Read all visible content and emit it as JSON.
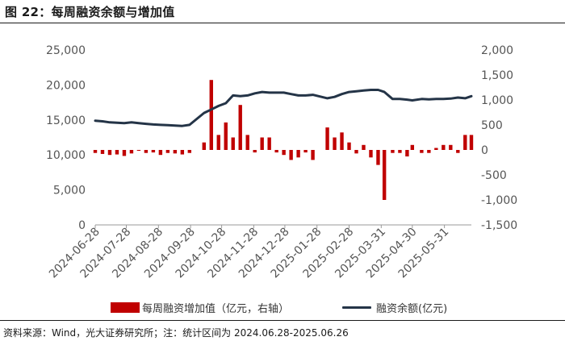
{
  "title": "图 22：每周融资余额与增加值",
  "source": "资料来源：Wind，光大证券研究所；注：统计区间为 2024.06.28-2025.06.26",
  "chart_data": {
    "type": "bar+line",
    "x": [
      "2024-06-28",
      "2024-07-05",
      "2024-07-12",
      "2024-07-19",
      "2024-07-26",
      "2024-08-02",
      "2024-08-09",
      "2024-08-16",
      "2024-08-23",
      "2024-08-30",
      "2024-09-06",
      "2024-09-13",
      "2024-09-20",
      "2024-09-27",
      "2024-10-11",
      "2024-10-18",
      "2024-10-25",
      "2024-11-01",
      "2024-11-08",
      "2024-11-15",
      "2024-11-22",
      "2024-11-29",
      "2024-12-06",
      "2024-12-13",
      "2024-12-20",
      "2024-12-27",
      "2025-01-03",
      "2025-01-10",
      "2025-01-17",
      "2025-01-24",
      "2025-02-07",
      "2025-02-14",
      "2025-02-21",
      "2025-02-28",
      "2025-03-07",
      "2025-03-14",
      "2025-03-21",
      "2025-03-28",
      "2025-04-03",
      "2025-04-11",
      "2025-04-18",
      "2025-04-25",
      "2025-04-30",
      "2025-05-09",
      "2025-05-16",
      "2025-05-23",
      "2025-05-30",
      "2025-06-06",
      "2025-06-13",
      "2025-06-20",
      "2025-06-26"
    ],
    "xtick_labels": [
      "2024-06-28",
      "2024-07-28",
      "2024-08-28",
      "2024-09-28",
      "2024-10-28",
      "2024-11-28",
      "2024-12-28",
      "2025-01-28",
      "2025-02-28",
      "2025-03-31",
      "2025-04-30",
      "2025-05-31"
    ],
    "xtick_dates": [
      "2024-06-28",
      "2024-07-28",
      "2024-08-28",
      "2024-09-28",
      "2024-10-28",
      "2024-11-28",
      "2024-12-28",
      "2025-01-28",
      "2025-02-28",
      "2025-03-31",
      "2025-04-30",
      "2025-05-31"
    ],
    "series": [
      {
        "name": "每周融资增加值（亿元，右轴）",
        "kind": "bar",
        "axis": "right",
        "color": "#c00000",
        "values": [
          -60,
          -80,
          -100,
          -90,
          -120,
          -70,
          0,
          -60,
          -50,
          -100,
          -60,
          -70,
          -90,
          -60,
          150,
          1400,
          300,
          550,
          250,
          900,
          300,
          -50,
          250,
          250,
          -50,
          -100,
          -200,
          -150,
          -50,
          -200,
          450,
          250,
          350,
          150,
          -70,
          100,
          -150,
          -300,
          -1000,
          -60,
          -60,
          -130,
          100,
          -60,
          -60,
          40,
          100,
          100,
          -60,
          300,
          300
        ]
      },
      {
        "name": "融资余额(亿元)",
        "kind": "line",
        "axis": "left",
        "color": "#243447",
        "values": [
          14900,
          14800,
          14650,
          14600,
          14550,
          14650,
          14550,
          14450,
          14350,
          14300,
          14250,
          14200,
          14150,
          14300,
          16000,
          16500,
          17000,
          17400,
          18500,
          18400,
          18500,
          18800,
          19000,
          18900,
          18900,
          18900,
          18700,
          18500,
          18500,
          18600,
          18100,
          18300,
          18700,
          19000,
          19100,
          19200,
          19300,
          19300,
          19000,
          18000,
          18000,
          17900,
          17800,
          18000,
          17950,
          18000,
          18000,
          18050,
          18200,
          18100,
          18400
        ]
      }
    ],
    "y_left": {
      "ylim": [
        0,
        25000
      ],
      "ticks": [
        "0",
        "5,000",
        "10,000",
        "15,000",
        "20,000",
        "25,000"
      ],
      "tick_values": [
        0,
        5000,
        10000,
        15000,
        20000,
        25000
      ]
    },
    "y_right": {
      "ylim": [
        -1500,
        2000
      ],
      "ticks": [
        "-1,500",
        "-1,000",
        "-500",
        "0",
        "500",
        "1,000",
        "1,500",
        "2,000"
      ],
      "tick_values": [
        -1500,
        -1000,
        -500,
        0,
        500,
        1000,
        1500,
        2000
      ]
    },
    "legend": "bottom",
    "grid": false
  }
}
